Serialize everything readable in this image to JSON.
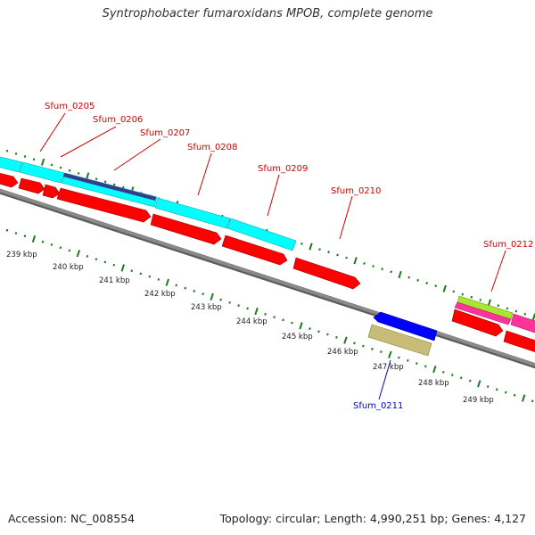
{
  "title": "Syntrophobacter fumaroxidans MPOB, complete genome",
  "footer": {
    "accession": "Accession: NC_008554",
    "summary": "Topology: circular; Length: 4,990,251 bp; Genes: 4,127"
  },
  "colors": {
    "backbone": "#8a8a8a",
    "cds": "#ff0000",
    "cog_cyan": "#00ffff",
    "cog_navy": "#3a3a8c",
    "cog_magenta": "#ff3399",
    "cog_green": "#a8e632",
    "cog_khaki": "#c8bd78",
    "reverse_cds": "#0000ff",
    "ticks": "#1e7a1e",
    "label_forward": "#cc0000",
    "label_reverse": "#0000cc"
  },
  "kbp_labels": [
    "239 kbp",
    "240 kbp",
    "241 kbp",
    "242 kbp",
    "243 kbp",
    "244 kbp",
    "245 kbp",
    "246 kbp",
    "247 kbp",
    "248 kbp",
    "249 kbp"
  ],
  "gene_labels": [
    "Sfum_0205",
    "Sfum_0206",
    "Sfum_0207",
    "Sfum_0208",
    "Sfum_0209",
    "Sfum_0210",
    "Sfum_0211",
    "Sfum_0212"
  ]
}
